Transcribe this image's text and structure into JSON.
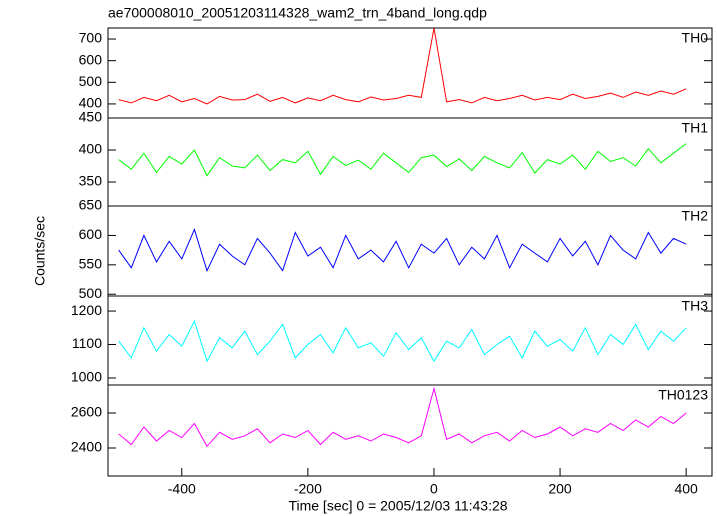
{
  "chart_data": [
    {
      "type": "line",
      "title": "ae700008010_20051203114328_wam2_trn_4band_long.qdp",
      "label": "TH0",
      "color": "#ff0000",
      "x": [
        -500,
        -480,
        -460,
        -440,
        -420,
        -400,
        -380,
        -360,
        -340,
        -320,
        -300,
        -280,
        -260,
        -240,
        -220,
        -200,
        -180,
        -160,
        -140,
        -120,
        -100,
        -80,
        -60,
        -40,
        -20,
        0,
        20,
        40,
        60,
        80,
        100,
        120,
        140,
        160,
        180,
        200,
        220,
        240,
        260,
        280,
        300,
        320,
        340,
        360,
        380,
        400
      ],
      "values": [
        420,
        405,
        430,
        415,
        440,
        410,
        425,
        400,
        435,
        418,
        420,
        445,
        412,
        430,
        405,
        428,
        415,
        440,
        420,
        410,
        432,
        418,
        425,
        440,
        430,
        750,
        410,
        420,
        405,
        430,
        415,
        425,
        440,
        418,
        430,
        420,
        445,
        425,
        435,
        450,
        430,
        455,
        440,
        460,
        445,
        470
      ],
      "xlim": [
        -517,
        441
      ],
      "ylim": [
        335,
        751
      ],
      "yticks": [
        400,
        500,
        600,
        700
      ]
    },
    {
      "type": "line",
      "label": "TH1",
      "color": "#00ff00",
      "x": [
        -500,
        -480,
        -460,
        -440,
        -420,
        -400,
        -380,
        -360,
        -340,
        -320,
        -300,
        -280,
        -260,
        -240,
        -220,
        -200,
        -180,
        -160,
        -140,
        -120,
        -100,
        -80,
        -60,
        -40,
        -20,
        0,
        20,
        40,
        60,
        80,
        100,
        120,
        140,
        160,
        180,
        200,
        220,
        240,
        260,
        280,
        300,
        320,
        340,
        360,
        380,
        400
      ],
      "values": [
        385,
        370,
        395,
        365,
        390,
        378,
        400,
        360,
        388,
        375,
        372,
        392,
        368,
        385,
        380,
        398,
        362,
        390,
        376,
        384,
        370,
        395,
        380,
        365,
        388,
        392,
        374,
        386,
        368,
        390,
        380,
        372,
        396,
        364,
        385,
        378,
        392,
        370,
        398,
        382,
        388,
        375,
        402,
        380,
        395,
        410
      ],
      "xlim": [
        -517,
        441
      ],
      "ylim": [
        312.5,
        450
      ],
      "yticks": [
        350,
        400,
        450
      ]
    },
    {
      "type": "line",
      "label": "TH2",
      "color": "#0000ff",
      "ylabel": "Counts/sec",
      "x": [
        -500,
        -480,
        -460,
        -440,
        -420,
        -400,
        -380,
        -360,
        -340,
        -320,
        -300,
        -280,
        -260,
        -240,
        -220,
        -200,
        -180,
        -160,
        -140,
        -120,
        -100,
        -80,
        -60,
        -40,
        -20,
        0,
        20,
        40,
        60,
        80,
        100,
        120,
        140,
        160,
        180,
        200,
        220,
        240,
        260,
        280,
        300,
        320,
        340,
        360,
        380,
        400
      ],
      "values": [
        575,
        545,
        600,
        555,
        590,
        560,
        610,
        540,
        585,
        565,
        550,
        595,
        570,
        540,
        605,
        565,
        580,
        545,
        600,
        560,
        575,
        555,
        590,
        545,
        585,
        570,
        595,
        550,
        580,
        560,
        600,
        545,
        585,
        570,
        555,
        595,
        565,
        590,
        550,
        600,
        575,
        560,
        605,
        570,
        595,
        585
      ],
      "xlim": [
        -517,
        441
      ],
      "ylim": [
        497,
        650
      ],
      "yticks": [
        500,
        550,
        600,
        650
      ]
    },
    {
      "type": "line",
      "label": "TH3",
      "color": "#00ffff",
      "x": [
        -500,
        -480,
        -460,
        -440,
        -420,
        -400,
        -380,
        -360,
        -340,
        -320,
        -300,
        -280,
        -260,
        -240,
        -220,
        -200,
        -180,
        -160,
        -140,
        -120,
        -100,
        -80,
        -60,
        -40,
        -20,
        0,
        20,
        40,
        60,
        80,
        100,
        120,
        140,
        160,
        180,
        200,
        220,
        240,
        260,
        280,
        300,
        320,
        340,
        360,
        380,
        400
      ],
      "values": [
        1110,
        1060,
        1150,
        1080,
        1130,
        1095,
        1170,
        1050,
        1120,
        1090,
        1140,
        1070,
        1110,
        1160,
        1060,
        1100,
        1130,
        1075,
        1150,
        1090,
        1105,
        1065,
        1135,
        1085,
        1120,
        1050,
        1110,
        1090,
        1145,
        1070,
        1100,
        1125,
        1060,
        1140,
        1095,
        1115,
        1080,
        1150,
        1070,
        1130,
        1100,
        1160,
        1085,
        1140,
        1110,
        1150
      ],
      "xlim": [
        -517,
        441
      ],
      "ylim": [
        979,
        1245
      ],
      "yticks": [
        1000,
        1100,
        1200
      ]
    },
    {
      "type": "line",
      "label": "TH0123",
      "color": "#ff00ff",
      "xlabel": "Time [sec] 0 = 2005/12/03 11:43:28",
      "x": [
        -500,
        -480,
        -460,
        -440,
        -420,
        -400,
        -380,
        -360,
        -340,
        -320,
        -300,
        -280,
        -260,
        -240,
        -220,
        -200,
        -180,
        -160,
        -140,
        -120,
        -100,
        -80,
        -60,
        -40,
        -20,
        0,
        20,
        40,
        60,
        80,
        100,
        120,
        140,
        160,
        180,
        200,
        220,
        240,
        260,
        280,
        300,
        320,
        340,
        360,
        380,
        400
      ],
      "values": [
        2480,
        2420,
        2520,
        2440,
        2500,
        2460,
        2540,
        2410,
        2490,
        2450,
        2470,
        2510,
        2430,
        2480,
        2460,
        2500,
        2420,
        2490,
        2450,
        2470,
        2440,
        2480,
        2460,
        2430,
        2470,
        2740,
        2450,
        2480,
        2430,
        2470,
        2490,
        2440,
        2500,
        2460,
        2480,
        2520,
        2470,
        2510,
        2490,
        2540,
        2500,
        2560,
        2520,
        2580,
        2540,
        2600
      ],
      "xlim": [
        -517,
        441
      ],
      "ylim": [
        2240,
        2760
      ],
      "yticks": [
        2400,
        2600
      ],
      "xticks": [
        -400,
        -200,
        0,
        200,
        400
      ]
    }
  ]
}
